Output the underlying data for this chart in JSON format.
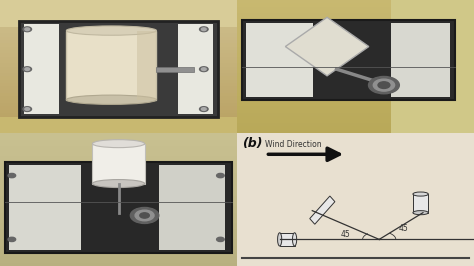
{
  "bg_color": "#e8e0d0",
  "schematic_bg": "#f8f8f8",
  "label_b_text": "(b)",
  "wind_label": "Wind Direction",
  "angle_label_1": "45",
  "angle_label_2": "45",
  "line_color": "#333333",
  "panels": {
    "tl": {
      "outer_color": "#c8b878",
      "outer_bottom": "#b8a860",
      "frame_color": "#404040",
      "inner_bg": "#d0c8b0",
      "window_bg": "#f0f0f0",
      "cyl_color": "#e8e0c8",
      "cyl_shadow": "#c0b890",
      "rod_color": "#909090",
      "screws": [
        "#888888"
      ]
    },
    "tr": {
      "outer_color": "#c0b070",
      "frame_color": "#383838",
      "inner_bg": "#606060",
      "window_bg": "#d8d8d8",
      "plate_color": "#e0ddd0",
      "nut_color": "#808080"
    },
    "bl": {
      "outer_color": "#c0b880",
      "frame_color": "#404040",
      "inner_bg": "#505050",
      "window_bg": "#c8c8c8",
      "cyl_color": "#f0eeea",
      "nut_color": "#808080"
    }
  }
}
